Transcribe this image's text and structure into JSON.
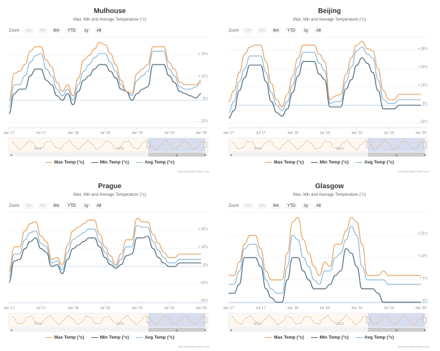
{
  "legend": {
    "max": "Max Temp (°c)",
    "min": "Min Temp (°c)",
    "avg": "Avg Temp (°c)"
  },
  "zoom": {
    "label": "Zoom",
    "buttons": [
      "1m",
      "3m",
      "6m",
      "YTD",
      "1y",
      "All"
    ],
    "disabled": [
      true,
      true,
      false,
      false,
      false,
      false
    ]
  },
  "credit": "WorldWeatherOnline.com",
  "navigator_labels": [
    "2010",
    "2015"
  ],
  "colors": {
    "max": "#e8a060",
    "min": "#4a6478",
    "avg": "#8ab8d8",
    "navigator_fill": "#cdd6ee",
    "navigator_line": "#e8b890"
  },
  "chart_data": [
    {
      "type": "line",
      "title": "Mulhouse",
      "subtitle": "Max, Min and Average Temperature (°c)",
      "xlabel": "",
      "ylabel": "",
      "x_ticks": [
        "Jan '17",
        "Jul '17",
        "Jan '18",
        "Jul '18",
        "Jan '19",
        "Jul '19",
        "Jan '20"
      ],
      "y_ticks": [
        "- 10°c",
        "0°c",
        "+ 10°c",
        "+ 20°c"
      ],
      "y_tick_values": [
        -10,
        0,
        10,
        20
      ],
      "ylim": [
        -12,
        28
      ],
      "x": [
        0,
        1,
        2,
        3,
        4,
        5,
        6,
        7,
        8,
        9,
        10,
        11,
        12,
        13,
        14,
        15,
        16,
        17,
        18,
        19,
        20,
        21,
        22,
        23,
        24,
        25,
        26,
        27,
        28,
        29,
        30,
        31,
        32,
        33,
        34,
        35,
        36
      ],
      "series": [
        {
          "name": "Max Temp (°c)",
          "values": [
            0,
            12,
            13,
            16,
            22,
            24,
            24,
            18,
            15,
            8,
            4,
            7,
            2,
            10,
            18,
            20,
            23,
            26,
            25,
            21,
            16,
            9,
            4,
            3,
            12,
            14,
            16,
            24,
            24,
            24,
            17,
            14,
            8,
            7,
            7,
            7,
            9
          ]
        },
        {
          "name": "Min Temp (°c)",
          "values": [
            -6,
            3,
            5,
            5,
            11,
            14,
            14,
            9,
            7,
            2,
            0,
            3,
            -2,
            4,
            9,
            11,
            14,
            16,
            16,
            13,
            10,
            5,
            4,
            0,
            3,
            5,
            6,
            16,
            16,
            16,
            11,
            8,
            4,
            3,
            2,
            1,
            3
          ]
        },
        {
          "name": "Avg Temp (°c)",
          "values": [
            -3,
            7,
            7,
            11,
            17,
            20,
            21,
            14,
            11,
            5,
            2,
            5,
            0,
            7,
            13,
            16,
            19,
            21,
            21,
            17,
            13,
            7,
            4,
            2,
            9,
            11,
            13,
            22,
            22,
            22,
            14,
            11,
            6,
            5,
            5,
            6,
            8
          ]
        }
      ]
    },
    {
      "type": "line",
      "title": "Beijing",
      "subtitle": "Max, Min and Average Temperature (°c)",
      "xlabel": "",
      "ylabel": "",
      "x_ticks": [
        "Jan '17",
        "Jul '17",
        "Jan '18",
        "Jul '18",
        "Jan '19",
        "Jul '19",
        "Jan '20"
      ],
      "y_ticks": [
        "-10°c",
        "0°c",
        "+ 10°c",
        "+ 20°c",
        "+ 30°c"
      ],
      "y_tick_values": [
        -10,
        0,
        10,
        20,
        30
      ],
      "ylim": [
        -12,
        37
      ],
      "x": [
        0,
        1,
        2,
        3,
        4,
        5,
        6,
        7,
        8,
        9,
        10,
        11,
        12,
        13,
        14,
        15,
        16,
        17,
        18,
        19,
        20,
        21,
        22,
        23,
        24,
        25,
        26,
        27,
        28,
        29,
        30,
        31,
        32,
        33,
        34,
        35,
        36
      ],
      "series": [
        {
          "name": "Max Temp (°c)",
          "values": [
            2,
            8,
            18,
            28,
            32,
            33,
            33,
            24,
            12,
            3,
            -1,
            6,
            16,
            26,
            33,
            33,
            33,
            28,
            24,
            3,
            5,
            6,
            17,
            26,
            33,
            35,
            31,
            30,
            20,
            8,
            3,
            3,
            6,
            6,
            6,
            6,
            6
          ]
        },
        {
          "name": "Min Temp (°c)",
          "values": [
            -7,
            -3,
            8,
            15,
            22,
            22,
            22,
            13,
            2,
            -4,
            -6,
            -2,
            7,
            16,
            24,
            24,
            24,
            17,
            14,
            -1,
            -1,
            -1,
            9,
            14,
            22,
            26,
            23,
            18,
            8,
            -2,
            -2,
            -2,
            0,
            0,
            0,
            0,
            0
          ]
        },
        {
          "name": "Avg Temp (°c)",
          "values": [
            -4,
            2,
            13,
            20,
            27,
            27,
            27,
            18,
            7,
            0,
            -3,
            2,
            11,
            21,
            29,
            29,
            29,
            23,
            19,
            1,
            2,
            2,
            13,
            21,
            30,
            32,
            28,
            26,
            14,
            3,
            1,
            1,
            3,
            3,
            3,
            3,
            3
          ]
        }
      ]
    },
    {
      "type": "line",
      "title": "Prague",
      "subtitle": "Max, Min and Average Temperature (°c)",
      "xlabel": "",
      "ylabel": "",
      "x_ticks": [
        "Jan '17",
        "Jul '17",
        "Jan '18",
        "Jul '18",
        "Jan '19",
        "Jul '19",
        "Jan '20"
      ],
      "y_ticks": [
        "-20°c",
        "-10°c",
        "0°c",
        "+ 10°c",
        "+ 20°c"
      ],
      "y_tick_values": [
        -20,
        -10,
        0,
        10,
        20
      ],
      "ylim": [
        -20,
        30
      ],
      "x": [
        0,
        1,
        2,
        3,
        4,
        5,
        6,
        7,
        8,
        9,
        10,
        11,
        12,
        13,
        14,
        15,
        16,
        17,
        18,
        19,
        20,
        21,
        22,
        23,
        24,
        25,
        26,
        27,
        28,
        29,
        30,
        31,
        32,
        33,
        34,
        35,
        36
      ],
      "series": [
        {
          "name": "Max Temp (°c)",
          "values": [
            -3,
            11,
            11,
            20,
            24,
            25,
            17,
            14,
            4,
            5,
            1,
            12,
            20,
            22,
            24,
            26,
            26,
            18,
            11,
            6,
            1,
            7,
            15,
            15,
            27,
            25,
            25,
            18,
            13,
            8,
            5,
            5,
            7,
            7,
            7,
            7,
            7
          ]
        },
        {
          "name": "Min Temp (°c)",
          "values": [
            -9,
            3,
            4,
            10,
            14,
            16,
            10,
            8,
            0,
            1,
            -4,
            4,
            10,
            12,
            14,
            16,
            16,
            11,
            5,
            1,
            -1,
            1,
            6,
            7,
            16,
            16,
            17,
            10,
            5,
            2,
            0,
            0,
            2,
            2,
            2,
            2,
            2
          ]
        },
        {
          "name": "Avg Temp (°c)",
          "values": [
            -6,
            7,
            7,
            15,
            19,
            20,
            13,
            11,
            2,
            3,
            -2,
            8,
            15,
            17,
            19,
            21,
            21,
            14,
            8,
            3,
            0,
            4,
            11,
            11,
            23,
            22,
            22,
            14,
            9,
            5,
            2,
            2,
            4,
            4,
            4,
            4,
            4
          ]
        }
      ]
    },
    {
      "type": "line",
      "title": "Glasgow",
      "subtitle": "Max, Min and Average Temperature (°c)",
      "xlabel": "",
      "ylabel": "",
      "x_ticks": [
        "Jan '17",
        "Jul '17",
        "Jan '18",
        "Jul '18",
        "Jan '19",
        "Jul '19",
        "Jan '20"
      ],
      "y_ticks": [
        "0°c",
        "+ 5°c",
        "+ 10°c",
        "+ 15°c"
      ],
      "y_tick_values": [
        0,
        5,
        10,
        15
      ],
      "ylim": [
        0,
        20
      ],
      "x": [
        0,
        1,
        2,
        3,
        4,
        5,
        6,
        7,
        8,
        9,
        10,
        11,
        12,
        13,
        14,
        15,
        16,
        17,
        18,
        19,
        20,
        21,
        22,
        23,
        24,
        25,
        26,
        27,
        28,
        29,
        30,
        31,
        32,
        33,
        34,
        35,
        36
      ],
      "series": [
        {
          "name": "Max Temp (°c)",
          "values": [
            6,
            6,
            9,
            13,
            15,
            15,
            12,
            7,
            5,
            5,
            5,
            11,
            18,
            19,
            14,
            11,
            8,
            6,
            9,
            8,
            13,
            13,
            16,
            19,
            18,
            13,
            6,
            6,
            6,
            7,
            6,
            6,
            6,
            6,
            6,
            6,
            6
          ]
        },
        {
          "name": "Min Temp (°c)",
          "values": [
            2,
            2,
            4,
            10,
            10,
            10,
            8,
            3,
            1,
            0,
            0,
            5,
            10,
            10,
            7,
            5,
            3,
            3,
            3,
            4,
            6,
            7,
            12,
            11,
            8,
            3,
            3,
            3,
            2,
            0,
            0,
            0,
            0,
            0,
            0,
            0,
            0
          ]
        },
        {
          "name": "Avg Temp (°c)",
          "values": [
            4,
            4,
            7,
            12,
            13,
            13,
            10,
            5,
            3,
            2,
            2,
            8,
            15,
            14,
            10,
            8,
            5,
            4,
            7,
            7,
            10,
            11,
            14,
            17,
            15,
            8,
            5,
            5,
            5,
            5,
            4,
            4,
            4,
            4,
            4,
            4,
            4
          ]
        }
      ]
    }
  ]
}
